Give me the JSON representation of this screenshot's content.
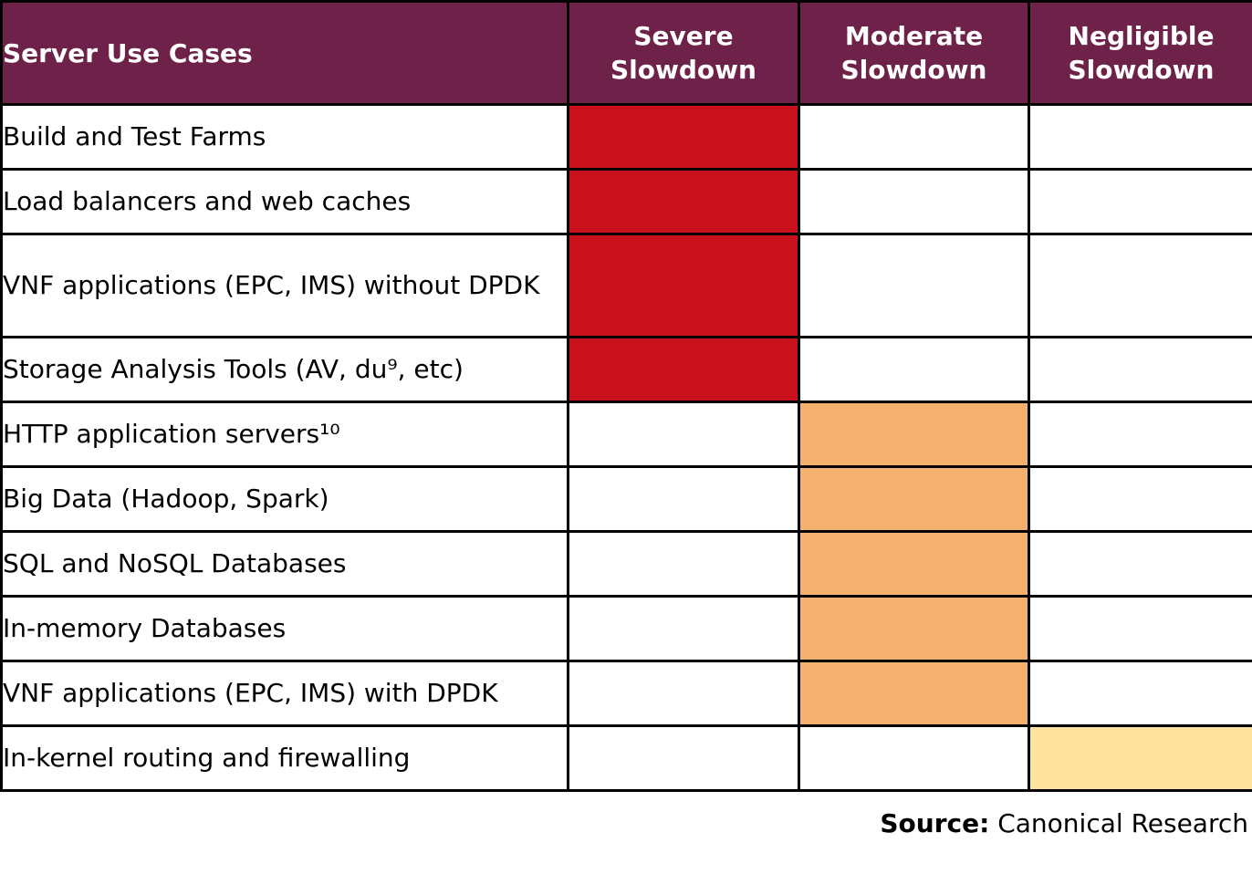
{
  "table": {
    "header": {
      "use_cases": "Server Use Cases",
      "columns": [
        {
          "id": "severe",
          "label": "Severe Slowdown"
        },
        {
          "id": "moderate",
          "label": "Moderate Slowdown"
        },
        {
          "id": "negligible",
          "label": "Negligible Slowdown"
        }
      ]
    },
    "rows": [
      {
        "label": "Build and Test Farms",
        "severity": "severe"
      },
      {
        "label": "Load balancers and web caches",
        "severity": "severe"
      },
      {
        "label": "VNF applications (EPC, IMS) without DPDK",
        "severity": "severe"
      },
      {
        "label": "Storage Analysis Tools (AV, du⁹, etc)",
        "severity": "severe"
      },
      {
        "label": "HTTP application servers¹⁰",
        "severity": "moderate"
      },
      {
        "label": "Big Data (Hadoop, Spark)",
        "severity": "moderate"
      },
      {
        "label": "SQL and NoSQL Databases",
        "severity": "moderate"
      },
      {
        "label": "In-memory Databases",
        "severity": "moderate"
      },
      {
        "label": "VNF applications (EPC, IMS) with DPDK",
        "severity": "moderate"
      },
      {
        "label": "In-kernel routing and firewalling",
        "severity": "negligible"
      }
    ],
    "colors": {
      "header_bg": "#6e2249",
      "header_text": "#ffffff",
      "severe": "#c8111a",
      "moderate": "#f4b06e",
      "negligible": "#fee29d",
      "border": "#000000"
    }
  },
  "footer": {
    "source_label": "Source:",
    "source_value": "Canonical Research"
  }
}
